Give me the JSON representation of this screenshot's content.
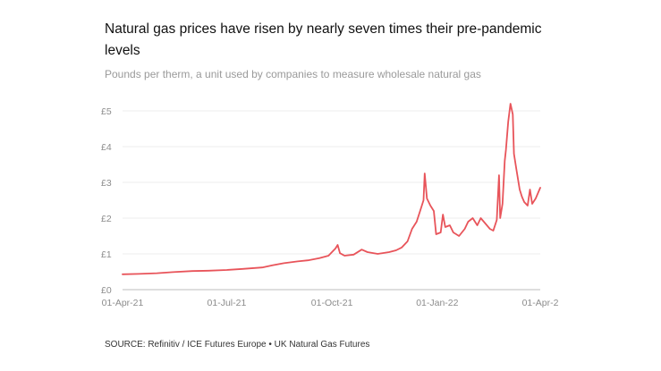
{
  "title": "Natural gas prices have risen by nearly seven times their pre-pandemic levels",
  "subtitle": "Pounds per therm, a unit used by companies to measure wholesale natural gas",
  "source": "SOURCE: Refinitiv / ICE Futures Europe • UK Natural Gas Futures",
  "colors": {
    "line": "#e8545a",
    "grid": "#ececec",
    "axis": "#bdbdbd",
    "tick_text": "#8c8c8c"
  },
  "chart_data": {
    "type": "line",
    "title": "Natural gas prices have risen by nearly seven times their pre-pandemic levels",
    "subtitle": "Pounds per therm, a unit used by companies to measure wholesale natural gas",
    "xlabel": "",
    "ylabel": "",
    "x_ticks": [
      "01-Apr-21",
      "01-Jul-21",
      "01-Oct-21",
      "01-Jan-22",
      "01-Apr-2"
    ],
    "y_ticks": [
      "£0",
      "£1",
      "£2",
      "£3",
      "£4",
      "£5"
    ],
    "ylim": [
      0,
      5.2
    ],
    "xlim": [
      "2021-04-01",
      "2022-04-01"
    ],
    "grid": true,
    "series": [
      {
        "color": "#e8545a",
        "points": [
          [
            "2021-04-01",
            0.43
          ],
          [
            "2021-04-15",
            0.44
          ],
          [
            "2021-05-01",
            0.46
          ],
          [
            "2021-05-15",
            0.49
          ],
          [
            "2021-06-01",
            0.52
          ],
          [
            "2021-06-15",
            0.53
          ],
          [
            "2021-07-01",
            0.55
          ],
          [
            "2021-07-15",
            0.58
          ],
          [
            "2021-08-01",
            0.62
          ],
          [
            "2021-08-10",
            0.68
          ],
          [
            "2021-08-20",
            0.74
          ],
          [
            "2021-09-01",
            0.79
          ],
          [
            "2021-09-10",
            0.82
          ],
          [
            "2021-09-20",
            0.88
          ],
          [
            "2021-09-28",
            0.95
          ],
          [
            "2021-10-01",
            1.05
          ],
          [
            "2021-10-04",
            1.15
          ],
          [
            "2021-10-06",
            1.25
          ],
          [
            "2021-10-08",
            1.02
          ],
          [
            "2021-10-12",
            0.95
          ],
          [
            "2021-10-20",
            0.98
          ],
          [
            "2021-10-27",
            1.12
          ],
          [
            "2021-11-01",
            1.05
          ],
          [
            "2021-11-10",
            1.0
          ],
          [
            "2021-11-20",
            1.05
          ],
          [
            "2021-11-26",
            1.1
          ],
          [
            "2021-12-01",
            1.18
          ],
          [
            "2021-12-06",
            1.35
          ],
          [
            "2021-12-10",
            1.7
          ],
          [
            "2021-12-14",
            1.9
          ],
          [
            "2021-12-17",
            2.2
          ],
          [
            "2021-12-20",
            2.5
          ],
          [
            "2021-12-21",
            3.25
          ],
          [
            "2021-12-23",
            2.55
          ],
          [
            "2021-12-26",
            2.35
          ],
          [
            "2021-12-29",
            2.2
          ],
          [
            "2021-12-31",
            1.55
          ],
          [
            "2022-01-04",
            1.6
          ],
          [
            "2022-01-06",
            2.1
          ],
          [
            "2022-01-08",
            1.75
          ],
          [
            "2022-01-12",
            1.8
          ],
          [
            "2022-01-15",
            1.6
          ],
          [
            "2022-01-20",
            1.5
          ],
          [
            "2022-01-25",
            1.7
          ],
          [
            "2022-01-28",
            1.9
          ],
          [
            "2022-02-01",
            2.0
          ],
          [
            "2022-02-05",
            1.8
          ],
          [
            "2022-02-08",
            2.0
          ],
          [
            "2022-02-12",
            1.85
          ],
          [
            "2022-02-16",
            1.7
          ],
          [
            "2022-02-19",
            1.65
          ],
          [
            "2022-02-22",
            1.95
          ],
          [
            "2022-02-24",
            3.2
          ],
          [
            "2022-02-25",
            2.0
          ],
          [
            "2022-02-27",
            2.4
          ],
          [
            "2022-03-01",
            3.6
          ],
          [
            "2022-03-02",
            3.9
          ],
          [
            "2022-03-04",
            4.7
          ],
          [
            "2022-03-06",
            5.2
          ],
          [
            "2022-03-08",
            4.9
          ],
          [
            "2022-03-09",
            3.8
          ],
          [
            "2022-03-11",
            3.4
          ],
          [
            "2022-03-14",
            2.8
          ],
          [
            "2022-03-16",
            2.6
          ],
          [
            "2022-03-18",
            2.45
          ],
          [
            "2022-03-21",
            2.35
          ],
          [
            "2022-03-23",
            2.8
          ],
          [
            "2022-03-25",
            2.4
          ],
          [
            "2022-03-28",
            2.55
          ],
          [
            "2022-04-01",
            2.85
          ]
        ]
      }
    ]
  }
}
